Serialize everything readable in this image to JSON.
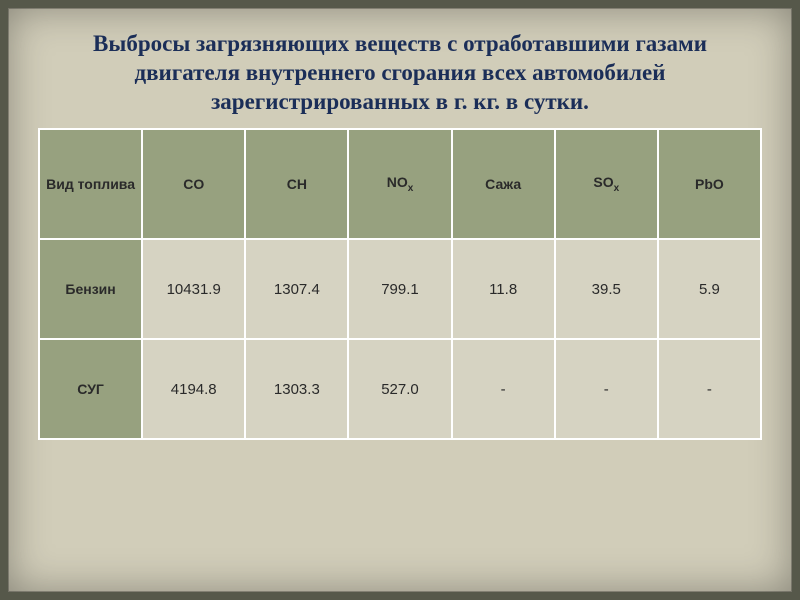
{
  "title": "Выбросы загрязняющих веществ с отработавшими газами двигателя внутреннего сгорания всех автомобилей зарегистрированных в г.  кг. в сутки.",
  "table": {
    "type": "table",
    "header_bg": "#97a17f",
    "cell_bg": "#d6d3c2",
    "border_color": "#ffffff",
    "frame_bg": "#d1cdb9",
    "outer_bg": "#56584a",
    "title_color": "#1b2e58",
    "title_fontsize": 23,
    "header_fontsize": 14,
    "cell_fontsize": 15,
    "columns": [
      {
        "label": "Вид топлива",
        "sub": ""
      },
      {
        "label": "CO",
        "sub": ""
      },
      {
        "label": "CH",
        "sub": ""
      },
      {
        "label": "NO",
        "sub": "x"
      },
      {
        "label": "Сажа",
        "sub": ""
      },
      {
        "label": "SO",
        "sub": "x"
      },
      {
        "label": "PbO",
        "sub": ""
      }
    ],
    "rows": [
      {
        "head": "Бензин",
        "cells": [
          "10431.9",
          "1307.4",
          "799.1",
          "11.8",
          "39.5",
          "5.9"
        ]
      },
      {
        "head": "СУГ",
        "cells": [
          "4194.8",
          "1303.3",
          "527.0",
          "-",
          "-",
          "-"
        ]
      }
    ]
  }
}
